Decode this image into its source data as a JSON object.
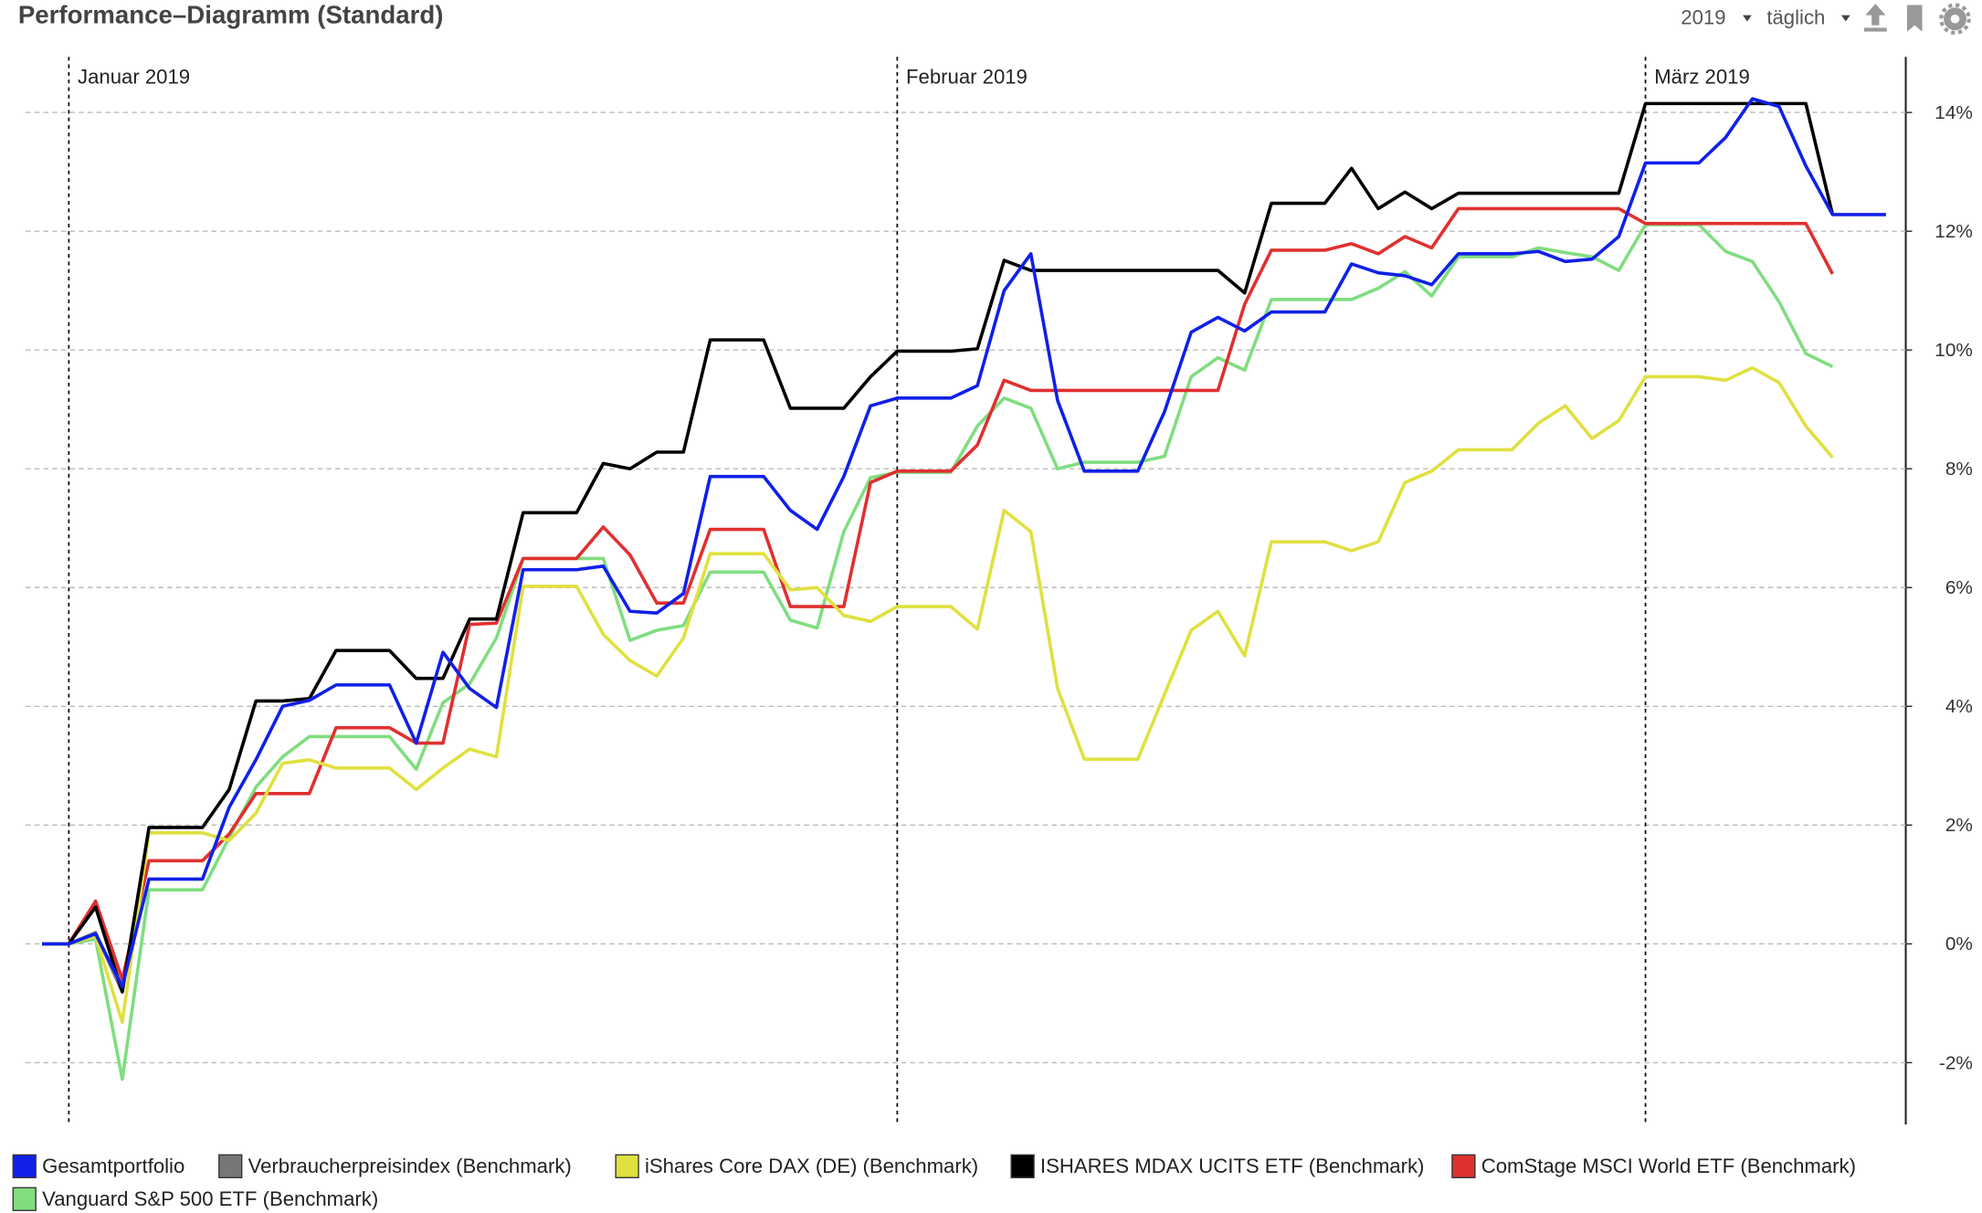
{
  "controls": [
    "2019",
    "täglich"
  ],
  "chart_data": {
    "type": "line",
    "title": "Performance–Diagramm (Standard)",
    "categories": [
      null,
      "Januar 2019",
      null,
      null,
      null,
      null,
      null,
      null,
      null,
      null,
      null,
      null,
      null,
      null,
      null,
      null,
      null,
      null,
      null,
      null,
      null,
      null,
      null,
      null,
      null,
      null,
      null,
      null,
      null,
      null,
      null,
      null,
      "Februar 2019",
      null,
      null,
      null,
      null,
      null,
      null,
      null,
      null,
      null,
      null,
      null,
      null,
      null,
      null,
      null,
      null,
      null,
      null,
      null,
      null,
      null,
      null,
      null,
      null,
      null,
      null,
      null,
      "März 2019",
      null,
      null,
      null,
      null,
      null,
      null,
      null,
      null,
      null
    ],
    "ylim": [
      -3,
      15
    ],
    "yticks": [
      {
        "value": -2,
        "label": "-2%"
      },
      {
        "value": 0,
        "label": "0%"
      },
      {
        "value": 2,
        "label": "2%"
      },
      {
        "value": 4,
        "label": "4%"
      },
      {
        "value": 6,
        "label": "6%"
      },
      {
        "value": 8,
        "label": "8%"
      },
      {
        "value": 10,
        "label": "10%"
      },
      {
        "value": 12,
        "label": "12%"
      },
      {
        "value": 14,
        "label": "14%"
      }
    ],
    "grid": true,
    "series": [
      {
        "name": "Gesamtportfolio",
        "color": "#1020e8",
        "values": [
          0,
          0,
          0.17,
          -0.72,
          1.09,
          1.09,
          1.09,
          2.3,
          3.1,
          4.0,
          4.1,
          4.36,
          4.36,
          4.36,
          3.38,
          4.91,
          4.3,
          3.98,
          6.3,
          6.3,
          6.3,
          6.36,
          5.6,
          5.57,
          5.9,
          7.87,
          7.87,
          7.87,
          7.3,
          6.98,
          7.87,
          9.06,
          9.19,
          9.19,
          9.19,
          9.4,
          11.0,
          11.62,
          9.15,
          7.96,
          7.96,
          7.96,
          8.96,
          10.3,
          10.55,
          10.32,
          10.64,
          10.64,
          10.64,
          11.45,
          11.3,
          11.25,
          11.1,
          11.62,
          11.62,
          11.62,
          11.66,
          11.49,
          11.53,
          11.91,
          13.15,
          13.15,
          13.15,
          13.58,
          14.23,
          14.1,
          13.1,
          12.28,
          12.28,
          12.28
        ]
      },
      {
        "name": "Verbraucherpreisindex (Benchmark)",
        "color": "#777777",
        "values": [
          0,
          0,
          0.19,
          -0.81,
          null,
          null,
          null,
          null,
          null,
          null,
          null,
          null,
          null,
          null,
          null,
          null,
          null,
          null,
          null,
          null,
          null,
          null,
          null,
          null,
          null,
          null,
          null,
          null,
          null,
          null,
          null,
          null,
          null,
          null,
          null,
          null,
          null,
          null,
          null,
          null,
          null,
          null,
          null,
          null,
          null,
          null,
          null,
          null,
          null,
          null,
          null,
          null,
          null,
          null,
          null,
          null,
          null,
          null,
          null,
          null,
          null,
          null,
          null,
          null,
          null,
          null,
          null,
          null,
          null,
          null
        ]
      },
      {
        "name": "iShares Core DAX (DE) (Benchmark)",
        "color": "#e0e040",
        "values": [
          0,
          0,
          0.13,
          -1.32,
          1.87,
          1.87,
          1.87,
          1.74,
          2.2,
          3.04,
          3.1,
          2.96,
          2.96,
          2.96,
          2.6,
          2.96,
          3.28,
          3.15,
          6.02,
          6.02,
          6.02,
          5.21,
          4.77,
          4.51,
          5.15,
          6.57,
          6.57,
          6.57,
          5.96,
          6.0,
          5.53,
          5.43,
          5.68,
          5.68,
          5.68,
          5.3,
          7.3,
          6.94,
          4.3,
          3.11,
          3.11,
          3.11,
          4.2,
          5.28,
          5.6,
          4.85,
          6.77,
          6.77,
          6.77,
          6.62,
          6.77,
          7.77,
          7.96,
          8.32,
          8.32,
          8.32,
          8.77,
          9.06,
          8.51,
          8.81,
          9.55,
          9.55,
          9.55,
          9.49,
          9.7,
          9.45,
          8.72,
          8.19,
          null,
          null
        ]
      },
      {
        "name": "ISHARES MDAX UCITS ETF (Benchmark)",
        "color": "#000000",
        "values": [
          0,
          0,
          0.62,
          -0.81,
          1.96,
          1.96,
          1.96,
          2.6,
          4.09,
          4.09,
          4.13,
          4.94,
          4.94,
          4.94,
          4.47,
          4.47,
          5.47,
          5.47,
          7.26,
          7.26,
          7.26,
          8.09,
          8.0,
          8.28,
          8.28,
          10.17,
          10.17,
          10.17,
          9.02,
          9.02,
          9.02,
          9.55,
          9.98,
          9.98,
          9.98,
          10.02,
          11.51,
          11.34,
          11.34,
          11.34,
          11.34,
          11.34,
          11.34,
          11.34,
          11.34,
          10.96,
          12.47,
          12.47,
          12.47,
          13.06,
          12.38,
          12.66,
          12.38,
          12.64,
          12.64,
          12.64,
          12.64,
          12.64,
          12.64,
          12.64,
          14.15,
          14.15,
          14.15,
          14.15,
          14.15,
          14.15,
          14.15,
          12.28,
          null,
          null
        ]
      },
      {
        "name": "ComStage MSCI World ETF (Benchmark)",
        "color": "#e03030",
        "values": [
          0,
          0,
          0.72,
          -0.6,
          1.4,
          1.4,
          1.4,
          1.85,
          2.53,
          2.53,
          2.53,
          3.64,
          3.64,
          3.64,
          3.38,
          3.38,
          5.38,
          5.4,
          6.49,
          6.49,
          6.49,
          7.02,
          6.55,
          5.74,
          5.74,
          6.98,
          6.98,
          6.98,
          5.68,
          5.68,
          5.68,
          7.77,
          7.96,
          7.96,
          7.96,
          8.4,
          9.49,
          9.32,
          9.32,
          9.32,
          9.32,
          9.32,
          9.32,
          9.32,
          9.32,
          10.77,
          11.68,
          11.68,
          11.68,
          11.79,
          11.62,
          11.91,
          11.72,
          12.38,
          12.38,
          12.38,
          12.38,
          12.38,
          12.38,
          12.38,
          12.13,
          12.13,
          12.13,
          12.13,
          12.13,
          12.13,
          12.13,
          11.28,
          null,
          null
        ]
      },
      {
        "name": "Vanguard S&P 500 ETF (Benchmark)",
        "color": "#80dd80",
        "values": [
          0,
          0,
          0.08,
          -2.28,
          0.91,
          0.91,
          0.91,
          1.79,
          2.64,
          3.15,
          3.49,
          3.49,
          3.49,
          3.49,
          2.94,
          4.06,
          4.38,
          5.15,
          6.49,
          6.49,
          6.49,
          6.49,
          5.11,
          5.28,
          5.36,
          6.26,
          6.26,
          6.26,
          5.45,
          5.32,
          6.94,
          7.85,
          7.94,
          7.94,
          7.94,
          8.72,
          9.19,
          9.02,
          8.0,
          8.11,
          8.11,
          8.11,
          8.21,
          9.55,
          9.87,
          9.66,
          10.85,
          10.85,
          10.85,
          10.85,
          11.04,
          11.32,
          10.91,
          11.57,
          11.57,
          11.57,
          11.72,
          11.64,
          11.57,
          11.34,
          12.11,
          12.11,
          12.11,
          11.66,
          11.49,
          10.81,
          9.94,
          9.72,
          null,
          null
        ]
      }
    ]
  }
}
